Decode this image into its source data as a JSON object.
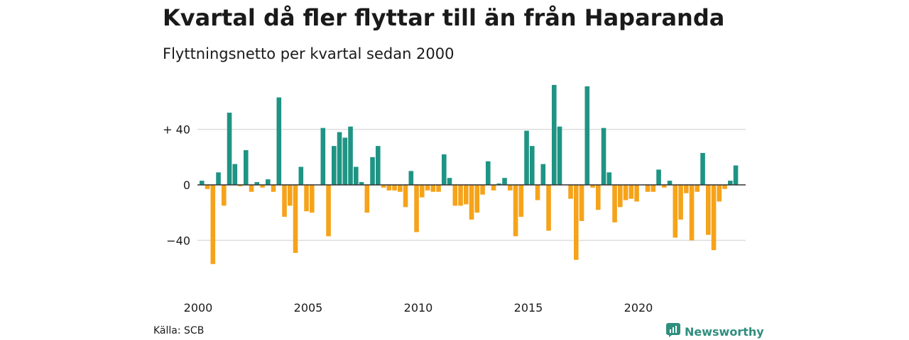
{
  "chart_data": {
    "type": "bar",
    "title": "Kvartal då fler flyttar till än från Haparanda",
    "subtitle": "Flyttningsnetto per kvartal sedan 2000",
    "xlabel": "",
    "ylabel": "",
    "start_year": 2000,
    "x_ticks": [
      "2000",
      "2005",
      "2010",
      "2015",
      "2020"
    ],
    "y_ticks": [
      {
        "value": 40,
        "label": "+ 40"
      },
      {
        "value": 0,
        "label": "0"
      },
      {
        "value": -40,
        "label": "−40"
      }
    ],
    "ylim": [
      -66,
      72
    ],
    "grid": true,
    "positive_color": "#1f9484",
    "negative_color": "#f5a31a",
    "values": [
      3,
      -3,
      -57,
      9,
      -15,
      52,
      15,
      -1,
      25,
      -5,
      2,
      -2,
      4,
      -5,
      63,
      -23,
      -15,
      -49,
      13,
      -19,
      -20,
      0,
      41,
      -37,
      28,
      38,
      34,
      42,
      13,
      2,
      -20,
      20,
      28,
      -2,
      -4,
      -4,
      -5,
      -16,
      10,
      -34,
      -9,
      -4,
      -5,
      -5,
      22,
      5,
      -15,
      -15,
      -14,
      -25,
      -20,
      -7,
      17,
      -4,
      1,
      5,
      -4,
      -37,
      -23,
      39,
      28,
      -11,
      15,
      -33,
      72,
      42,
      0,
      -10,
      -54,
      -26,
      71,
      -2,
      -18,
      41,
      9,
      -27,
      -16,
      -11,
      -10,
      -12,
      0,
      -5,
      -5,
      11,
      -2,
      3,
      -38,
      -25,
      -6,
      -40,
      -5,
      23,
      -36,
      -47,
      -12,
      -3,
      3,
      14
    ]
  },
  "footer": {
    "source": "Källa: SCB",
    "brand": "Newsworthy",
    "brand_icon": "newsworthy-logo-icon"
  }
}
